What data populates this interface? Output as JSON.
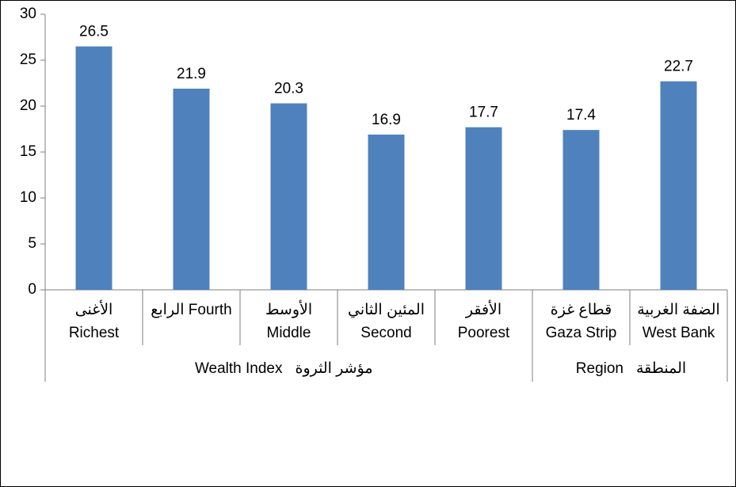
{
  "chart_data": {
    "type": "bar",
    "categories": [
      [
        "الأغنى",
        "Richest"
      ],
      [
        "الرابع  Fourth"
      ],
      [
        "الأوسط",
        "Middle"
      ],
      [
        "المئين الثاني",
        "Second"
      ],
      [
        "الأفقر",
        "Poorest"
      ],
      [
        "قطاع غزة",
        "Gaza Strip"
      ],
      [
        "الضفة الغربية",
        "West Bank"
      ]
    ],
    "values": [
      26.5,
      21.9,
      20.3,
      16.9,
      17.7,
      17.4,
      22.7
    ],
    "groups": [
      {
        "name_en": "Wealth Index",
        "name_ar": "مؤشر الثروة",
        "span": 5
      },
      {
        "name_en": "Region",
        "name_ar": "المنطقة",
        "span": 2
      }
    ],
    "color": "#4f81bd",
    "ylim": [
      0,
      30
    ],
    "yticks": [
      0,
      5,
      10,
      15,
      20,
      25,
      30
    ],
    "grid": false
  }
}
